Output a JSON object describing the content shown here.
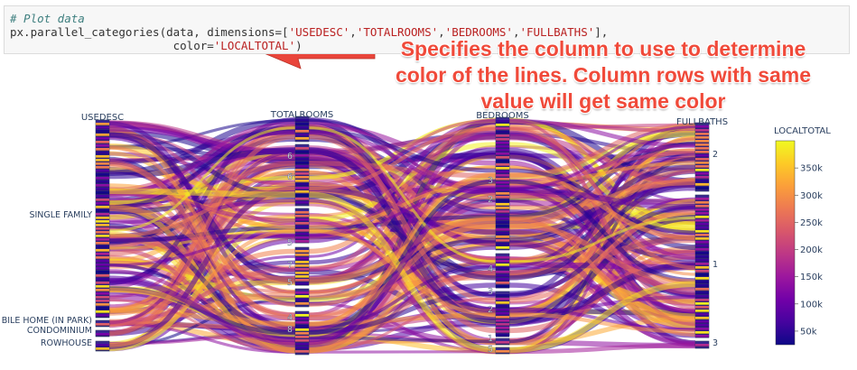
{
  "code": {
    "comment": "# Plot data",
    "line1_prefix": "px.parallel_categories(data, dimensions=[",
    "dims_text": [
      "'USEDESC'",
      "'TOTALROOMS'",
      "'BEDROOMS'",
      "'FULLBATHS'"
    ],
    "line1_suffix": "],",
    "line2_indent": "                        ",
    "color_kw": "color=",
    "color_value": "'LOCALTOTAL'",
    "line2_suffix": ")"
  },
  "annotation": {
    "lines": [
      "Specifies the column to use to determine",
      "color of the lines. Column rows with same",
      "value will get same color"
    ]
  },
  "colors": {
    "arrow": "#e9453b",
    "band_outline": "#2a3f5f",
    "colorscale": [
      "#0d0887",
      "#46039f",
      "#7201a8",
      "#9c179e",
      "#bd3786",
      "#d8576b",
      "#ed7953",
      "#fb9f3a",
      "#fdca26",
      "#f0f921"
    ]
  },
  "chart_data": {
    "type": "parallel_categories",
    "dimensions": [
      {
        "name": "USEDESC",
        "categories": [
          "SINGLE FAMILY",
          "MOBILE HOME (IN PARK)",
          "CONDOMINIUM",
          "ROWHOUSE"
        ],
        "shown_labels": [
          "SINGLE FAMILY",
          "BILE HOME (IN PARK)",
          "CONDOMINIUM",
          "ROWHOUSE"
        ]
      },
      {
        "name": "TOTALROOMS",
        "categories": [
          "6",
          "6",
          "5",
          "7",
          "5",
          "4",
          "8"
        ],
        "shown_labels": [
          "6",
          "6",
          "5",
          "7",
          "5",
          "4",
          "8"
        ]
      },
      {
        "name": "BEDROOMS",
        "categories": [
          "3",
          "2",
          "4",
          "3",
          "2",
          "1",
          "5"
        ],
        "shown_labels": [
          "3",
          "2",
          "4",
          "3",
          "2",
          "1",
          "5"
        ]
      },
      {
        "name": "FULLBATHS",
        "categories": [
          "2",
          "1",
          "3"
        ],
        "shown_labels": [
          "2",
          "1",
          "3"
        ]
      }
    ],
    "color_variable": "LOCALTOTAL",
    "colorbar": {
      "title": "LOCALTOTAL",
      "ticks": [
        "50k",
        "100k",
        "150k",
        "200k",
        "250k",
        "300k",
        "350k"
      ],
      "range": [
        25000,
        400000
      ]
    }
  }
}
